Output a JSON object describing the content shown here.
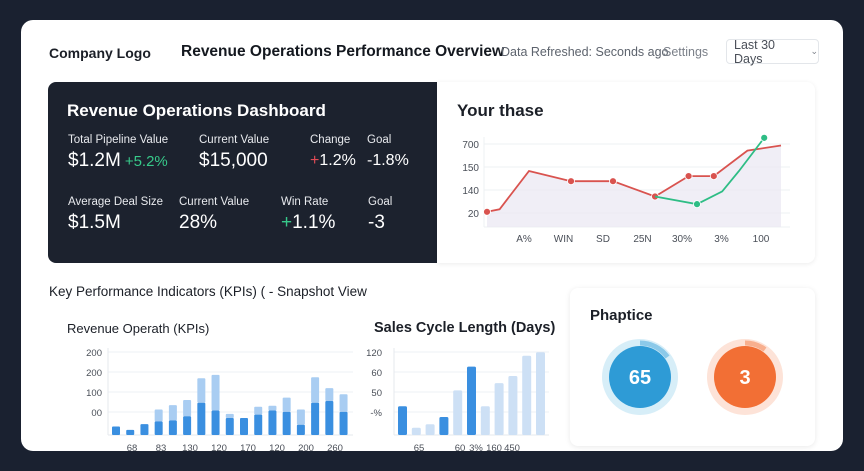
{
  "header": {
    "logo": "Company Logo",
    "title": "Revenue Operations Performance Overview",
    "refresh_status": "Data Refreshed: Seconds ago",
    "settings_label": "Settings",
    "date_range": "Last 30 Days"
  },
  "dashboard": {
    "title": "Revenue Operations Dashboard",
    "row1": [
      {
        "label": "Total Pipeline Value",
        "value": "$1.2M",
        "delta": "+5.2%"
      },
      {
        "label": "Current Value",
        "value": "$15,000"
      },
      {
        "label": "Change",
        "sign": "+",
        "value": "1.2%"
      },
      {
        "label": "Goal",
        "value": "-1.8%"
      }
    ],
    "row2": [
      {
        "label": "Average Deal Size",
        "value": "$1.5M"
      },
      {
        "label": "Current Value",
        "value": "28%"
      },
      {
        "label": "Win Rate",
        "sign": "+",
        "value": "1.1%"
      },
      {
        "label": "Goal",
        "value": "-3"
      }
    ]
  },
  "kpi_section": {
    "heading": "Key Performance Indicators (KPIs) ( - Snapshot View"
  },
  "gauges": {
    "title": "Phaptice",
    "items": [
      {
        "value": "65",
        "fraction": 0.15,
        "color": "#2e9bd6",
        "ring": "#d7eef8"
      },
      {
        "value": "3",
        "fraction": 0.1,
        "color": "#f26f35",
        "ring": "#fde3d8"
      }
    ]
  },
  "chart_data": [
    {
      "type": "line",
      "title": "Your thase",
      "yticks": [
        "700",
        "150",
        "140",
        "20"
      ],
      "categories": [
        "A%",
        "WIN",
        "SD",
        "25N",
        "30%",
        "3%",
        "100"
      ],
      "ylim": [
        0,
        4
      ],
      "grid": true,
      "series": [
        {
          "name": "red",
          "color": "#d9534f",
          "x": [
            0,
            0.3,
            1.0,
            2.0,
            3.0,
            4.0,
            4.8,
            5.4,
            6.2,
            7.0
          ],
          "y": [
            0.4,
            0.5,
            2.0,
            1.6,
            1.6,
            1.0,
            1.8,
            1.8,
            2.8,
            3.0
          ],
          "markers": [
            0,
            3,
            4,
            5,
            6,
            7
          ]
        },
        {
          "name": "green",
          "color": "#2ebd85",
          "x": [
            4.0,
            5.0,
            5.6,
            6.0,
            6.6
          ],
          "y": [
            1.0,
            0.7,
            1.2,
            2.0,
            3.3
          ],
          "markers": [
            1,
            4
          ]
        }
      ]
    },
    {
      "type": "bar",
      "title": "Revenue Operath (KPIs)",
      "yticks": [
        "200",
        "200",
        "100",
        "00"
      ],
      "xticks": [
        "68",
        "83",
        "130",
        "120",
        "170",
        "120",
        "200",
        "260"
      ],
      "ylim": [
        0,
        200
      ],
      "stacked": true,
      "series": [
        {
          "name": "base",
          "color": "#3a8fe0",
          "values": [
            25,
            15,
            32,
            40,
            43,
            55,
            95,
            72,
            50,
            50,
            60,
            72,
            68,
            30,
            95,
            100,
            68,
            35
          ]
        },
        {
          "name": "top",
          "color": "#a9cdf2",
          "values": [
            0,
            0,
            0,
            35,
            45,
            48,
            72,
            105,
            12,
            0,
            23,
            14,
            42,
            45,
            75,
            38,
            52,
            57
          ]
        }
      ]
    },
    {
      "type": "bar",
      "title": "Sales Cycle Length (Days)",
      "yticks": [
        "120",
        "60",
        "50",
        "-%"
      ],
      "xticks": [
        "65",
        "60",
        "3%",
        "160",
        "450"
      ],
      "ylim": [
        0,
        120
      ],
      "series": [
        {
          "name": "dark",
          "color": "#3a8fe0",
          "values": [
            40,
            0,
            0,
            25,
            0,
            95,
            0,
            0,
            0,
            0,
            0
          ]
        },
        {
          "name": "light",
          "color": "#cde0f5",
          "values": [
            0,
            10,
            15,
            0,
            62,
            0,
            40,
            72,
            82,
            110,
            115
          ]
        }
      ]
    }
  ]
}
